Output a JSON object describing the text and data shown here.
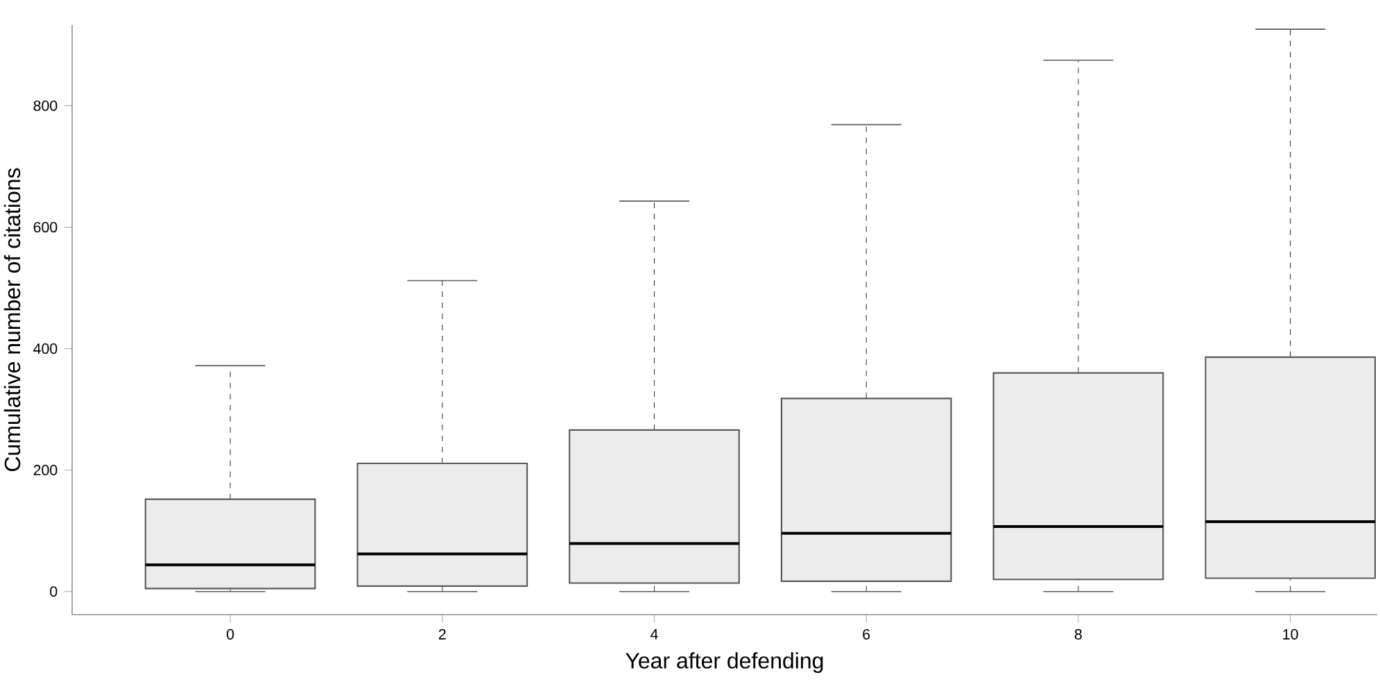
{
  "chart_data": {
    "type": "box",
    "xlabel": "Year after defending",
    "ylabel": "Cumulative number of citations",
    "categories": [
      "0",
      "2",
      "4",
      "6",
      "8",
      "10"
    ],
    "color": "#ececec",
    "boxes": [
      {
        "low": 0,
        "q1": 5,
        "median": 44,
        "q3": 152,
        "high": 372
      },
      {
        "low": 0,
        "q1": 9,
        "median": 62,
        "q3": 211,
        "high": 512
      },
      {
        "low": 0,
        "q1": 14,
        "median": 79,
        "q3": 266,
        "high": 643
      },
      {
        "low": 0,
        "q1": 17,
        "median": 96,
        "q3": 318,
        "high": 769
      },
      {
        "low": 0,
        "q1": 20,
        "median": 107,
        "q3": 360,
        "high": 875
      },
      {
        "low": 0,
        "q1": 22,
        "median": 115,
        "q3": 386,
        "high": 926
      }
    ],
    "ylim": [
      -38,
      933
    ],
    "yticks": [
      0,
      200,
      400,
      600,
      800
    ],
    "grid": false
  }
}
